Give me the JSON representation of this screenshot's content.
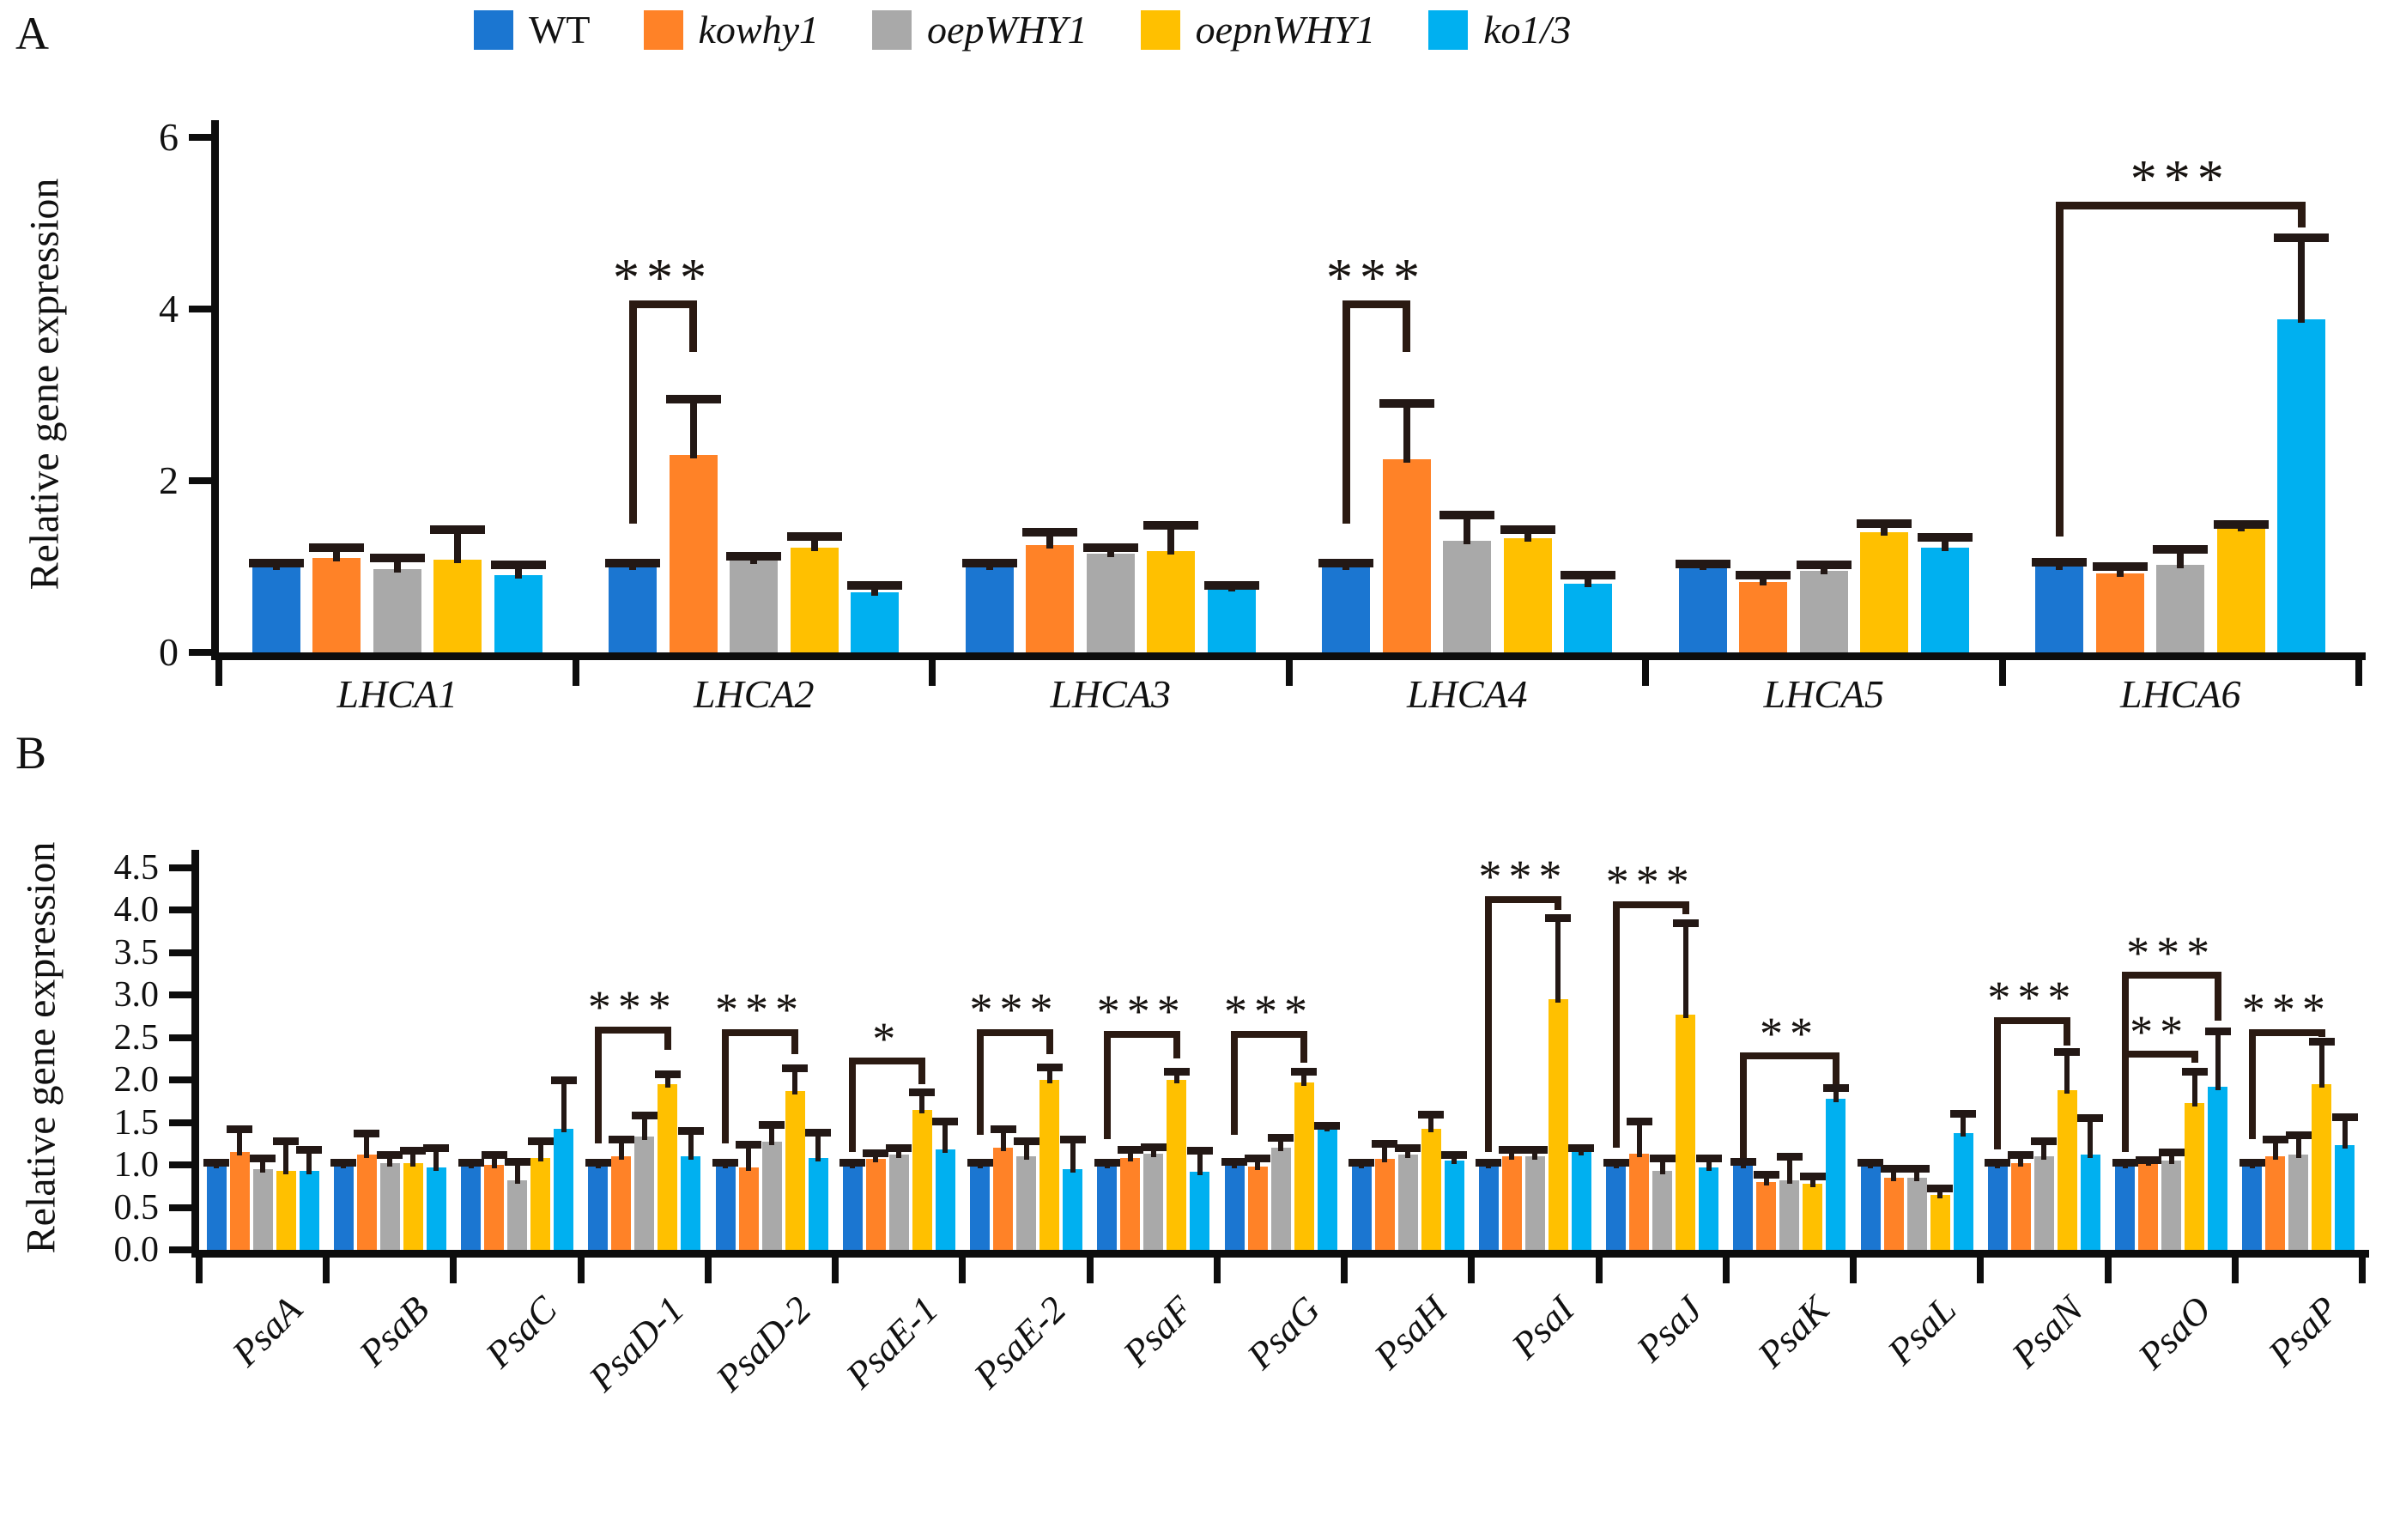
{
  "page": {
    "panel_a_label": "A",
    "panel_b_label": "B",
    "background": "#ffffff"
  },
  "colors": {
    "axis": "#0d0d0d",
    "error_bar": "#231815",
    "bracket": "#2b1a12",
    "star": "#171310"
  },
  "legend": {
    "items": [
      {
        "label": "WT",
        "color": "#1B76D1",
        "italic": false
      },
      {
        "label": "kowhy1",
        "color": "#FF8227",
        "italic": true
      },
      {
        "label": "oepWHY1",
        "color": "#A9A9A9",
        "italic": true
      },
      {
        "label": "oepnWHY1",
        "color": "#FFC000",
        "italic": true
      },
      {
        "label": "ko1/3",
        "color": "#00B0F0",
        "italic": true
      }
    ]
  },
  "chart_data": [
    {
      "type": "bar",
      "panel": "A",
      "title": "",
      "xlabel": "",
      "ylabel": "Relative gene expression",
      "ylim": [
        0,
        6
      ],
      "yticks": [
        0,
        2,
        4,
        6
      ],
      "ytick_labels": [
        "0",
        "2",
        "4",
        "6"
      ],
      "grid": false,
      "legend_position": "top",
      "categories": [
        "LHCA1",
        "LHCA2",
        "LHCA3",
        "LHCA4",
        "LHCA5",
        "LHCA6"
      ],
      "series": [
        {
          "name": "WT",
          "color": "#1B76D1",
          "values": [
            1.0,
            1.0,
            1.0,
            1.0,
            1.0,
            1.0
          ],
          "errors": [
            0.04,
            0.04,
            0.04,
            0.04,
            0.03,
            0.05
          ]
        },
        {
          "name": "kowhy1",
          "color": "#FF8227",
          "values": [
            1.1,
            2.3,
            1.25,
            2.25,
            0.82,
            0.92
          ],
          "errors": [
            0.12,
            0.65,
            0.15,
            0.65,
            0.08,
            0.08
          ]
        },
        {
          "name": "oepWHY1",
          "color": "#A9A9A9",
          "values": [
            0.97,
            1.07,
            1.15,
            1.3,
            0.95,
            1.02
          ],
          "errors": [
            0.13,
            0.05,
            0.07,
            0.3,
            0.07,
            0.18
          ]
        },
        {
          "name": "oepnWHY1",
          "color": "#FFC000",
          "values": [
            1.08,
            1.22,
            1.18,
            1.33,
            1.4,
            1.45
          ],
          "errors": [
            0.35,
            0.13,
            0.3,
            0.1,
            0.1,
            0.04
          ]
        },
        {
          "name": "ko1/3",
          "color": "#00B0F0",
          "values": [
            0.9,
            0.7,
            0.75,
            0.8,
            1.22,
            3.88
          ],
          "errors": [
            0.12,
            0.08,
            0.03,
            0.1,
            0.12,
            0.95
          ]
        }
      ],
      "significance": [
        {
          "category": "LHCA2",
          "stars": "***",
          "between": [
            "WT",
            "kowhy1"
          ],
          "bar_from": 0,
          "bar_to": 1,
          "line_y": 4.1,
          "left_drop_to": 1.5,
          "right_drop_to": 3.5
        },
        {
          "category": "LHCA4",
          "stars": "***",
          "between": [
            "WT",
            "kowhy1"
          ],
          "bar_from": 0,
          "bar_to": 1,
          "line_y": 4.1,
          "left_drop_to": 1.5,
          "right_drop_to": 3.5
        },
        {
          "category": "LHCA6",
          "stars": "***",
          "between": [
            "WT",
            "ko1/3"
          ],
          "bar_from": 0,
          "bar_to": 4,
          "line_y": 5.25,
          "left_drop_to": 1.35,
          "right_drop_to": 4.95
        }
      ]
    },
    {
      "type": "bar",
      "panel": "B",
      "title": "",
      "xlabel": "",
      "ylabel": "Relative gene expression",
      "ylim": [
        0,
        4.5
      ],
      "yticks": [
        0,
        0.5,
        1,
        1.5,
        2,
        2.5,
        3,
        3.5,
        4,
        4.5
      ],
      "ytick_labels": [
        "0.0",
        "0.5",
        "1.0",
        "1.5",
        "2.0",
        "2.5",
        "3.0",
        "3.5",
        "4.0",
        "4.5"
      ],
      "grid": false,
      "legend_position": "top",
      "categories": [
        "PsaA",
        "PsaB",
        "PsaC",
        "PsaD-1",
        "PsaD-2",
        "PsaE-1",
        "PsaE-2",
        "PsaF",
        "PsaG",
        "PsaH",
        "PsaI",
        "PsaJ",
        "PsaK",
        "PsaL",
        "PsaN",
        "PsaO",
        "PsaP"
      ],
      "series": [
        {
          "name": "WT",
          "color": "#1B76D1",
          "values": [
            1.0,
            1.0,
            1.0,
            1.0,
            1.0,
            1.0,
            1.0,
            1.0,
            1.0,
            1.0,
            1.0,
            1.0,
            1.0,
            1.0,
            1.0,
            1.0,
            1.0
          ],
          "errors": [
            0.03,
            0.03,
            0.03,
            0.03,
            0.03,
            0.03,
            0.03,
            0.03,
            0.04,
            0.03,
            0.03,
            0.03,
            0.04,
            0.03,
            0.03,
            0.03,
            0.03
          ]
        },
        {
          "name": "kowhy1",
          "color": "#FF8227",
          "values": [
            1.15,
            1.12,
            1.0,
            1.1,
            0.97,
            1.07,
            1.2,
            1.08,
            0.98,
            1.07,
            1.1,
            1.13,
            0.8,
            0.85,
            1.02,
            1.03,
            1.1
          ],
          "errors": [
            0.27,
            0.25,
            0.12,
            0.2,
            0.27,
            0.07,
            0.22,
            0.1,
            0.1,
            0.18,
            0.08,
            0.38,
            0.08,
            0.1,
            0.1,
            0.03,
            0.2
          ]
        },
        {
          "name": "oepWHY1",
          "color": "#A9A9A9",
          "values": [
            0.95,
            1.02,
            0.82,
            1.33,
            1.27,
            1.12,
            1.1,
            1.13,
            1.2,
            1.12,
            1.1,
            0.93,
            0.82,
            0.85,
            1.1,
            1.05,
            1.12
          ],
          "errors": [
            0.13,
            0.1,
            0.22,
            0.25,
            0.2,
            0.08,
            0.18,
            0.08,
            0.12,
            0.08,
            0.08,
            0.15,
            0.28,
            0.1,
            0.18,
            0.1,
            0.23
          ]
        },
        {
          "name": "oepnWHY1",
          "color": "#FFC000",
          "values": [
            0.93,
            1.02,
            1.08,
            1.95,
            1.87,
            1.65,
            2.0,
            2.0,
            1.97,
            1.42,
            2.95,
            2.77,
            0.78,
            0.65,
            1.88,
            1.73,
            1.95
          ],
          "errors": [
            0.35,
            0.15,
            0.2,
            0.12,
            0.27,
            0.2,
            0.15,
            0.1,
            0.13,
            0.17,
            0.95,
            1.07,
            0.08,
            0.07,
            0.45,
            0.37,
            0.5
          ]
        },
        {
          "name": "ko1/3",
          "color": "#00B0F0",
          "values": [
            0.93,
            0.97,
            1.42,
            1.1,
            1.08,
            1.18,
            0.95,
            0.92,
            1.43,
            1.05,
            1.15,
            0.97,
            1.78,
            1.37,
            1.12,
            1.92,
            1.23
          ],
          "errors": [
            0.25,
            0.23,
            0.58,
            0.3,
            0.3,
            0.33,
            0.35,
            0.25,
            0.03,
            0.07,
            0.05,
            0.11,
            0.12,
            0.23,
            0.43,
            0.65,
            0.33
          ]
        }
      ],
      "significance": [
        {
          "category": "PsaD-1",
          "stars": "***",
          "between": [
            "WT",
            "oepnWHY1"
          ],
          "bar_from": 0,
          "bar_to": 3,
          "line_y": 2.63,
          "left_drop_to": 1.25,
          "right_drop_to": 2.35
        },
        {
          "category": "PsaD-2",
          "stars": "***",
          "between": [
            "WT",
            "oepnWHY1"
          ],
          "bar_from": 0,
          "bar_to": 3,
          "line_y": 2.6,
          "left_drop_to": 1.25,
          "right_drop_to": 2.3
        },
        {
          "category": "PsaE-1",
          "stars": "*",
          "between": [
            "WT",
            "oepnWHY1"
          ],
          "bar_from": 0,
          "bar_to": 3,
          "line_y": 2.26,
          "left_drop_to": 1.15,
          "right_drop_to": 1.95
        },
        {
          "category": "PsaE-2",
          "stars": "***",
          "between": [
            "WT",
            "oepnWHY1"
          ],
          "bar_from": 0,
          "bar_to": 3,
          "line_y": 2.6,
          "left_drop_to": 1.35,
          "right_drop_to": 2.3
        },
        {
          "category": "PsaF",
          "stars": "***",
          "between": [
            "WT",
            "oepnWHY1"
          ],
          "bar_from": 0,
          "bar_to": 3,
          "line_y": 2.58,
          "left_drop_to": 1.3,
          "right_drop_to": 2.25
        },
        {
          "category": "PsaG",
          "stars": "***",
          "between": [
            "WT",
            "oepnWHY1"
          ],
          "bar_from": 0,
          "bar_to": 3,
          "line_y": 2.58,
          "left_drop_to": 1.35,
          "right_drop_to": 2.2
        },
        {
          "category": "PsaI",
          "stars": "***",
          "between": [
            "WT",
            "oepnWHY1"
          ],
          "bar_from": 0,
          "bar_to": 3,
          "line_y": 4.16,
          "left_drop_to": 1.15,
          "right_drop_to": 4.0
        },
        {
          "category": "PsaJ",
          "stars": "***",
          "between": [
            "WT",
            "oepnWHY1"
          ],
          "bar_from": 0,
          "bar_to": 3,
          "line_y": 4.1,
          "left_drop_to": 1.2,
          "right_drop_to": 3.95
        },
        {
          "category": "PsaK",
          "stars": "**",
          "between": [
            "WT",
            "ko1/3"
          ],
          "bar_from": 0,
          "bar_to": 4,
          "line_y": 2.32,
          "left_drop_to": 1.08,
          "right_drop_to": 1.95
        },
        {
          "category": "PsaN",
          "stars": "***",
          "between": [
            "WT",
            "oepnWHY1"
          ],
          "bar_from": 0,
          "bar_to": 3,
          "line_y": 2.74,
          "left_drop_to": 1.18,
          "right_drop_to": 2.4
        },
        {
          "category": "PsaO",
          "stars": "***",
          "between": [
            "WT",
            "ko1/3"
          ],
          "bar_from": 0,
          "bar_to": 4,
          "line_y": 3.27,
          "left_drop_to": 1.15,
          "right_drop_to": 2.7
        },
        {
          "category": "PsaO",
          "stars": "**",
          "between": [
            "WT",
            "oepnWHY1"
          ],
          "bar_from": 0,
          "bar_to": 3,
          "line_y": 2.34,
          "left_drop_to": null,
          "right_drop_to": 2.2
        },
        {
          "category": "PsaP",
          "stars": "***",
          "between": [
            "WT",
            "oepnWHY1"
          ],
          "bar_from": 0,
          "bar_to": 3,
          "line_y": 2.6,
          "left_drop_to": 1.3,
          "right_drop_to": 2.5
        }
      ]
    }
  ]
}
